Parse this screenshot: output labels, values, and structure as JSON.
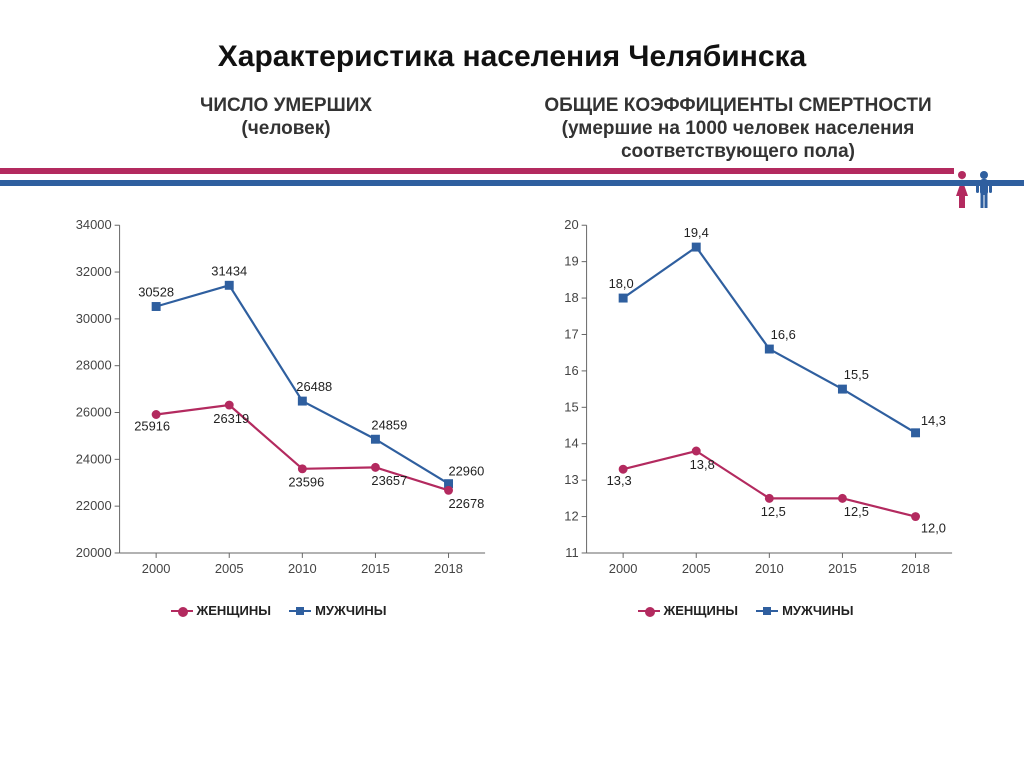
{
  "title": "Характеристика населения Челябинска",
  "left_chart": {
    "type": "line",
    "title_line1": "ЧИСЛО УМЕРШИХ",
    "title_line2": "(человек)",
    "x_categories": [
      "2000",
      "2005",
      "2010",
      "2015",
      "2018"
    ],
    "y_ticks": [
      20000,
      22000,
      24000,
      26000,
      28000,
      30000,
      32000,
      34000
    ],
    "ylim": [
      20000,
      34000
    ],
    "series": {
      "female": {
        "label": "ЖЕНЩИНЫ",
        "color": "#b32a5f",
        "marker": "circle",
        "values": [
          25916,
          26319,
          23596,
          23657,
          22678
        ],
        "data_labels": [
          "25916",
          "26319",
          "23596",
          "23657",
          "22678"
        ]
      },
      "male": {
        "label": "МУЖЧИНЫ",
        "color": "#2f5f9f",
        "marker": "square",
        "values": [
          30528,
          31434,
          26488,
          24859,
          22960
        ],
        "data_labels": [
          "30528",
          "31434",
          "26488",
          "24859",
          "22960"
        ]
      }
    },
    "line_width": 2.2,
    "marker_size": 6,
    "axis_color": "#666666",
    "background_color": "#ffffff",
    "label_fontsize": 13
  },
  "right_chart": {
    "type": "line",
    "title_line1": "ОБЩИЕ КОЭФФИЦИЕНТЫ СМЕРТНОСТИ",
    "title_line2": "(умершие на 1000 человек населения",
    "title_line3": "соответствующего пола)",
    "x_categories": [
      "2000",
      "2005",
      "2010",
      "2015",
      "2018"
    ],
    "y_ticks": [
      11,
      12,
      13,
      14,
      15,
      16,
      17,
      18,
      19,
      20
    ],
    "ylim": [
      11,
      20
    ],
    "series": {
      "female": {
        "label": "ЖЕНЩИНЫ",
        "color": "#b32a5f",
        "marker": "circle",
        "values": [
          13.3,
          13.8,
          12.5,
          12.5,
          12.0
        ],
        "data_labels": [
          "13,3",
          "13,8",
          "12,5",
          "12,5",
          "12,0"
        ]
      },
      "male": {
        "label": "МУЖЧИНЫ",
        "color": "#2f5f9f",
        "marker": "square",
        "values": [
          18.0,
          19.4,
          16.6,
          15.5,
          14.3
        ],
        "data_labels": [
          "18,0",
          "19,4",
          "16,6",
          "15,5",
          "14,3"
        ]
      }
    },
    "line_width": 2.2,
    "marker_size": 6,
    "axis_color": "#666666",
    "background_color": "#ffffff",
    "label_fontsize": 13
  },
  "legend": {
    "female": "ЖЕНЩИНЫ",
    "male": "МУЖЧИНЫ"
  },
  "stripe_colors": {
    "top": "#b32a5f",
    "mid": "#ffffff",
    "bot": "#2f5f9f"
  },
  "icons": {
    "female_color": "#b32a5f",
    "male_color": "#2f5f9f"
  }
}
